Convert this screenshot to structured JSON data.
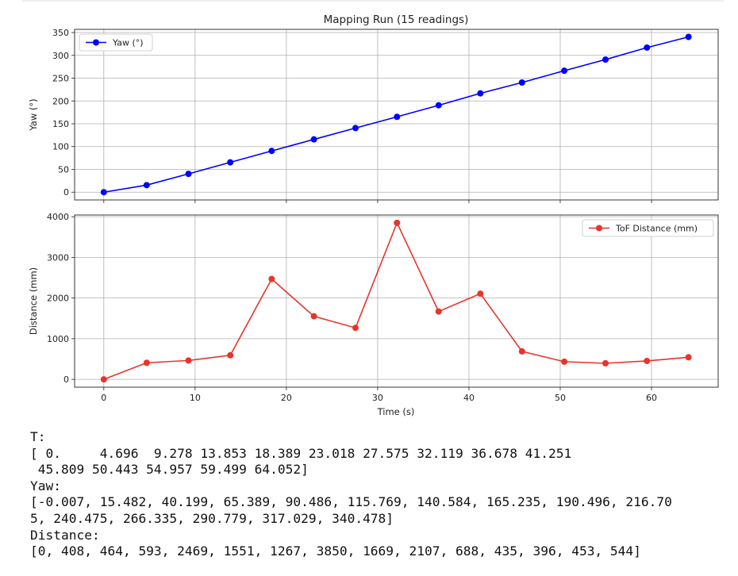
{
  "chart_data": {
    "type": "line",
    "title": "Mapping Run (15 readings)",
    "x": [
      0,
      4.696,
      9.278,
      13.853,
      18.389,
      23.018,
      27.575,
      32.119,
      36.678,
      41.251,
      45.809,
      50.443,
      54.957,
      59.499,
      64.052
    ],
    "xlabel": "Time (s)",
    "xlim": [
      -3.2,
      67.3
    ],
    "xticks": [
      0,
      10,
      20,
      30,
      40,
      50,
      60
    ],
    "grid": true,
    "subplots": [
      {
        "ylabel": "Yaw (°)",
        "ylim": [
          -17,
          357
        ],
        "yticks": [
          0,
          50,
          100,
          150,
          200,
          250,
          300,
          350
        ],
        "legend_position": "upper-left",
        "series": [
          {
            "name": "Yaw (°)",
            "color": "#0000ff",
            "values": [
              -0.007,
              15.482,
              40.199,
              65.389,
              90.486,
              115.769,
              140.584,
              165.235,
              190.496,
              216.705,
              240.475,
              266.335,
              290.779,
              317.029,
              340.478
            ]
          }
        ]
      },
      {
        "ylabel": "Distance (mm)",
        "ylim": [
          -192,
          4042
        ],
        "yticks": [
          0,
          1000,
          2000,
          3000,
          4000
        ],
        "legend_position": "upper-right",
        "series": [
          {
            "name": "ToF Distance (mm)",
            "color": "#e8342b",
            "values": [
              0,
              408,
              464,
              593,
              2469,
              1551,
              1267,
              3850,
              1669,
              2107,
              688,
              435,
              396,
              453,
              544
            ]
          }
        ]
      }
    ]
  },
  "output": {
    "lines": [
      "T:",
      "[ 0.     4.696  9.278 13.853 18.389 23.018 27.575 32.119 36.678 41.251",
      " 45.809 50.443 54.957 59.499 64.052]",
      "Yaw:",
      "[-0.007, 15.482, 40.199, 65.389, 90.486, 115.769, 140.584, 165.235, 190.496, 216.70",
      "5, 240.475, 266.335, 290.779, 317.029, 340.478]",
      "Distance:",
      "[0, 408, 464, 593, 2469, 1551, 1267, 3850, 1669, 2107, 688, 435, 396, 453, 544]"
    ]
  }
}
